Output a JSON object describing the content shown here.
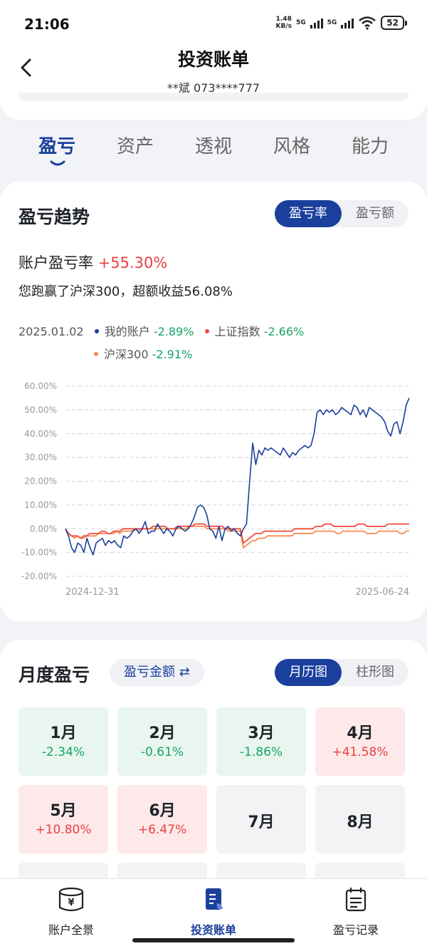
{
  "status": {
    "time": "21:06",
    "net_speed_value": "1.48",
    "net_speed_unit": "KB/s",
    "sim1": "5G",
    "sim2": "5G",
    "battery": "52"
  },
  "header": {
    "title": "投资账单",
    "account": "**斌 073****777"
  },
  "tabs": [
    {
      "label": "盈亏",
      "active": true
    },
    {
      "label": "资产"
    },
    {
      "label": "透视"
    },
    {
      "label": "风格"
    },
    {
      "label": "能力"
    }
  ],
  "trend": {
    "title": "盈亏趋势",
    "toggle": [
      "盈亏率",
      "盈亏额"
    ],
    "rate_label": "账户盈亏率",
    "rate_value": "+55.30%",
    "beat_text": "您跑赢了沪深300，超额收益56.08%",
    "tooltip": {
      "date": "2025.01.02",
      "series": [
        {
          "name": "我的账户",
          "value": "-2.89%"
        },
        {
          "name": "上证指数",
          "value": "-2.66%"
        },
        {
          "name": "沪深300",
          "value": "-2.91%"
        }
      ]
    }
  },
  "chart_data": {
    "type": "line",
    "yticks": [
      "60.00%",
      "50.00%",
      "40.00%",
      "30.00%",
      "20.00%",
      "10.00%",
      "0.00%",
      "-10.00%",
      "-20.00%"
    ],
    "ylim": [
      -20,
      60
    ],
    "xlabels": [
      "2024-12-31",
      "2025-06-24"
    ],
    "grid": true,
    "series": [
      {
        "name": "我的账户",
        "color": "#1a3f9c",
        "values": [
          0,
          -3,
          -8,
          -10,
          -6,
          -7,
          -10,
          -4,
          -8,
          -11,
          -6,
          -5,
          -4,
          -7,
          -5,
          -6,
          -5,
          -7,
          -8,
          -3,
          -4,
          -3,
          -1,
          0,
          -2,
          0,
          3,
          -2,
          -1,
          -1,
          2,
          0,
          -2,
          0,
          -1,
          -3,
          0,
          1,
          0,
          -1,
          0,
          2,
          5,
          9,
          10,
          9,
          6,
          0,
          -1,
          -4,
          1,
          -5,
          0,
          1,
          -1,
          0,
          -2,
          -3,
          0,
          2,
          20,
          36,
          27,
          33,
          31,
          34,
          33,
          34,
          33,
          32,
          31,
          34,
          32,
          30,
          32,
          31,
          33,
          34,
          35,
          34,
          35,
          40,
          49,
          50,
          48,
          50,
          49,
          50,
          48,
          49,
          51,
          50,
          49,
          48,
          52,
          51,
          48,
          50,
          47,
          51,
          50,
          49,
          48,
          47,
          45,
          41,
          39,
          44,
          45,
          40,
          45,
          52,
          55
        ]
      },
      {
        "name": "上证指数",
        "color": "#f04a3c",
        "values": [
          0,
          -2,
          -3,
          -3,
          -3,
          -4,
          -3,
          -3,
          -2,
          -2,
          -2,
          -2,
          -1,
          -1,
          -2,
          -2,
          -1,
          -1,
          -1,
          0,
          0,
          0,
          0,
          0,
          0,
          0,
          0,
          0,
          0,
          1,
          1,
          1,
          1,
          1,
          0,
          0,
          0,
          1,
          1,
          1,
          1,
          1,
          1,
          2,
          2,
          2,
          2,
          1,
          1,
          1,
          1,
          1,
          1,
          0,
          0,
          0,
          0,
          0,
          0,
          -6,
          -5,
          -4,
          -3,
          -2,
          -2,
          -2,
          -1,
          -1,
          -1,
          -1,
          -1,
          -1,
          -1,
          -1,
          -1,
          -1,
          0,
          0,
          0,
          0,
          0,
          0,
          0,
          1,
          1,
          1,
          2,
          2,
          2,
          1,
          1,
          1,
          1,
          1,
          1,
          1,
          1,
          2,
          2,
          2,
          1,
          1,
          1,
          1,
          1,
          1,
          1,
          2,
          2,
          2,
          2,
          2,
          2,
          2,
          2
        ]
      },
      {
        "name": "沪深300",
        "color": "#f58b4c",
        "values": [
          0,
          -2,
          -3,
          -4,
          -3,
          -4,
          -4,
          -3,
          -3,
          -3,
          -3,
          -2,
          -2,
          -2,
          -2,
          -2,
          -2,
          -1,
          -2,
          -1,
          -1,
          -1,
          -1,
          0,
          -1,
          0,
          0,
          0,
          0,
          0,
          0,
          0,
          0,
          0,
          0,
          0,
          0,
          0,
          0,
          0,
          0,
          1,
          1,
          1,
          1,
          1,
          1,
          0,
          0,
          0,
          0,
          0,
          0,
          0,
          -1,
          -1,
          -1,
          -1,
          -1,
          -8,
          -7,
          -6,
          -5,
          -5,
          -4,
          -4,
          -4,
          -3,
          -3,
          -3,
          -3,
          -3,
          -3,
          -3,
          -3,
          -3,
          -2,
          -2,
          -2,
          -2,
          -2,
          -2,
          -2,
          -1,
          -1,
          -1,
          -1,
          -1,
          -1,
          -1,
          -2,
          -2,
          -1,
          -1,
          -1,
          -1,
          -1,
          -1,
          -1,
          -1,
          -2,
          -2,
          -2,
          -2,
          -1,
          -1,
          -1,
          -1,
          -1,
          -1,
          -1,
          -2,
          -2,
          -1,
          -1
        ]
      }
    ]
  },
  "monthly": {
    "title": "月度盈亏",
    "switch_label": "盈亏金额 ⇄",
    "toggle": [
      "月历图",
      "柱形图"
    ],
    "months": [
      {
        "label": "1月",
        "value": "-2.34%",
        "state": "green"
      },
      {
        "label": "2月",
        "value": "-0.61%",
        "state": "green"
      },
      {
        "label": "3月",
        "value": "-1.86%",
        "state": "green"
      },
      {
        "label": "4月",
        "value": "+41.58%",
        "state": "red"
      },
      {
        "label": "5月",
        "value": "+10.80%",
        "state": "red"
      },
      {
        "label": "6月",
        "value": "+6.47%",
        "state": "red"
      },
      {
        "label": "7月",
        "value": "",
        "state": "gray"
      },
      {
        "label": "8月",
        "value": "",
        "state": "gray"
      }
    ]
  },
  "nav": [
    {
      "label": "账户全景",
      "icon": "wallet-icon"
    },
    {
      "label": "投资账单",
      "icon": "bill-icon",
      "active": true
    },
    {
      "label": "盈亏记录",
      "icon": "calendar-record-icon"
    }
  ]
}
